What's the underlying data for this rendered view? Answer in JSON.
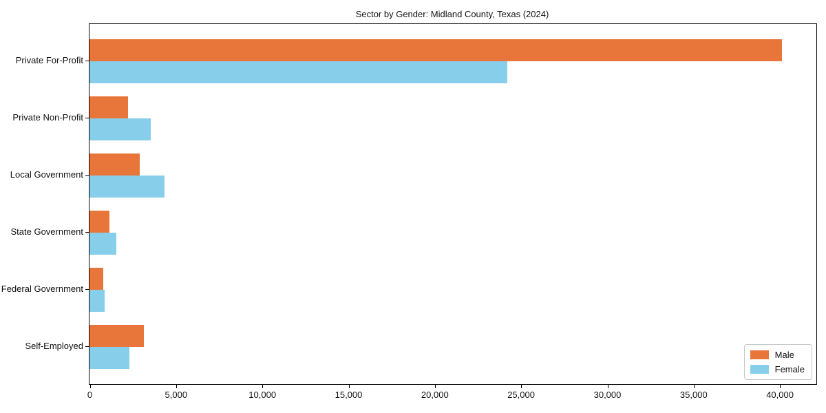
{
  "title": "Sector by Gender: Midland County, Texas (2024)",
  "chart_data": {
    "type": "bar",
    "orientation": "horizontal",
    "title": "Sector by Gender: Midland County, Texas (2024)",
    "categories": [
      "Private For-Profit",
      "Private Non-Profit",
      "Local Government",
      "State Government",
      "Federal Government",
      "Self-Employed"
    ],
    "series": [
      {
        "name": "Male",
        "color": "#E8763B",
        "values": [
          40150,
          2250,
          2930,
          1160,
          800,
          3150
        ]
      },
      {
        "name": "Female",
        "color": "#87CEEB",
        "values": [
          24200,
          3550,
          4340,
          1570,
          880,
          2300
        ]
      }
    ],
    "xlabel": "",
    "ylabel": "",
    "xlim": [
      0,
      42130
    ],
    "x_ticks": [
      0,
      5000,
      10000,
      15000,
      20000,
      25000,
      30000,
      35000,
      40000
    ],
    "x_tick_labels": [
      "0",
      "5,000",
      "10,000",
      "15,000",
      "20,000",
      "25,000",
      "30,000",
      "35,000",
      "40,000"
    ],
    "grid": false,
    "legend": {
      "position": "lower right",
      "entries": [
        "Male",
        "Female"
      ]
    }
  }
}
